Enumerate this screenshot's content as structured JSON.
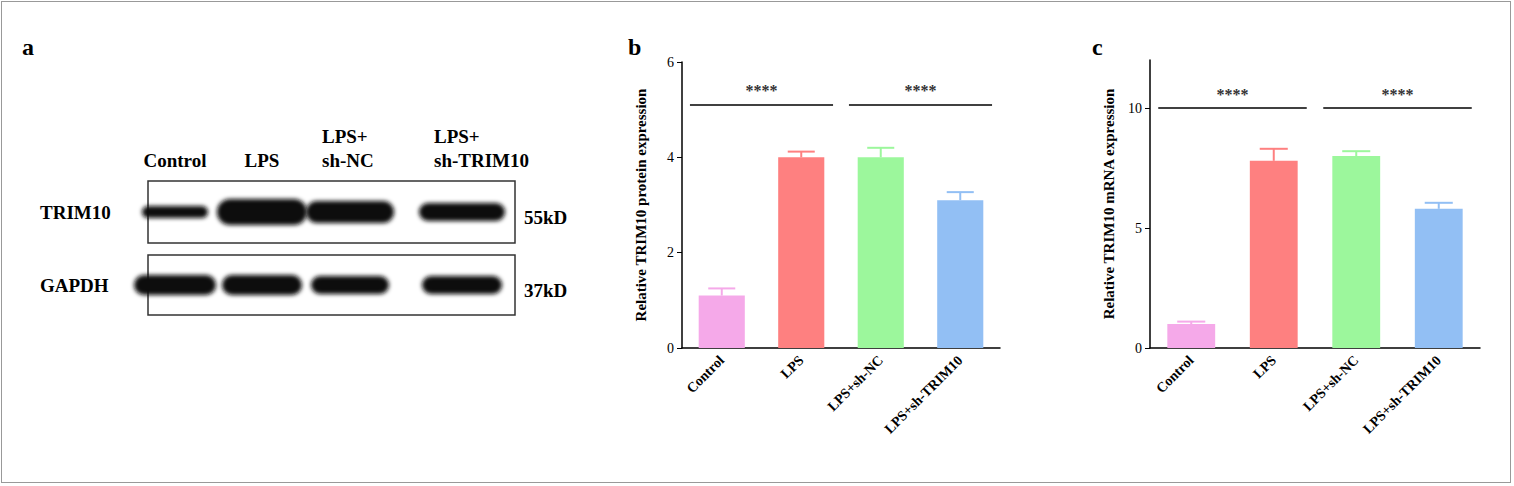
{
  "panel_labels": [
    "a",
    "b",
    "c"
  ],
  "blot": {
    "lanes": [
      "Control",
      "LPS",
      "LPS+\nsh-NC",
      "LPS+\nsh-TRIM10"
    ],
    "rows": [
      {
        "label": "TRIM10",
        "size": "55kD"
      },
      {
        "label": "GAPDH",
        "size": "37kD"
      }
    ]
  },
  "chart_data": [
    {
      "type": "bar",
      "categories": [
        "Control",
        "LPS",
        "LPS+sh-NC",
        "LPS+sh-TRIM10"
      ],
      "values": [
        1.1,
        4.0,
        4.0,
        3.1
      ],
      "error": [
        0.15,
        0.12,
        0.2,
        0.17
      ],
      "colors": [
        "#f5a9e9",
        "#fe8080",
        "#9cf79c",
        "#92bff4"
      ],
      "ylabel": "Relative TRIM10 protein expression",
      "ylim": [
        0,
        6
      ],
      "yticks": [
        0,
        2,
        4,
        6
      ],
      "grid": false,
      "annotations": [
        {
          "from": "Control",
          "to": "LPS",
          "y": 5.1,
          "text": "****"
        },
        {
          "from": "LPS+sh-NC",
          "to": "LPS+sh-TRIM10",
          "y": 5.1,
          "text": "****"
        }
      ]
    },
    {
      "type": "bar",
      "categories": [
        "Control",
        "LPS",
        "LPS+sh-NC",
        "LPS+sh-TRIM10"
      ],
      "values": [
        1.0,
        7.8,
        8.0,
        5.8
      ],
      "error": [
        0.1,
        0.5,
        0.2,
        0.25
      ],
      "colors": [
        "#f5a9e9",
        "#fe8080",
        "#9cf79c",
        "#92bff4"
      ],
      "ylabel": "Relative TRIM10 mRNA expression",
      "ylim": [
        0,
        12
      ],
      "yticks": [
        0,
        5,
        10
      ],
      "grid": false,
      "annotations": [
        {
          "from": "Control",
          "to": "LPS",
          "y": 10,
          "text": "****"
        },
        {
          "from": "LPS+sh-NC",
          "to": "LPS+sh-TRIM10",
          "y": 10,
          "text": "****"
        }
      ]
    }
  ]
}
